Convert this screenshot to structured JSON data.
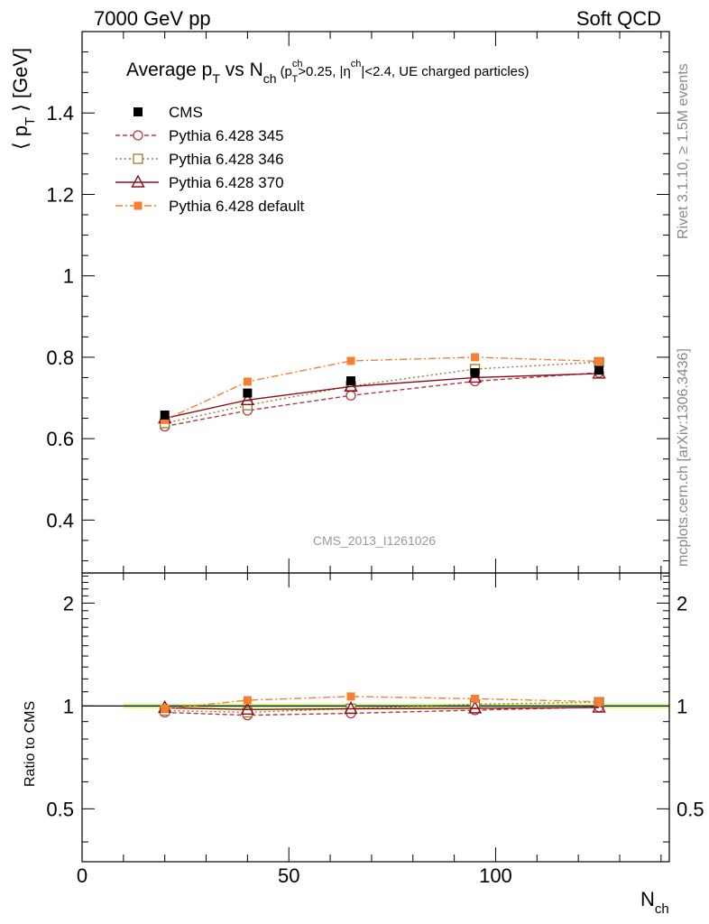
{
  "header": {
    "left": "7000 GeV pp",
    "right": "Soft QCD"
  },
  "side_labels": {
    "rivet": "Rivet 3.1.10, ≥ 1.5M events",
    "mcplots": "mcplots.cern.ch [arXiv:1306.3436]"
  },
  "analysis_id": "CMS_2013_I1261026",
  "title": {
    "prefix": "Average p",
    "sub_t": "T",
    "vs": " vs N",
    "sub_ch": "ch",
    "cut_open": "(p",
    "cut_sup": "ch",
    "cut_sub": "T",
    "cut_mid": ">0.25, |η",
    "cut_sup2": "ch",
    "cut_end": "|<2.4, UE charged particles)"
  },
  "axes": {
    "ylabel_main": "⟨ p",
    "ylabel_main_sub": "T",
    "ylabel_main_end": " ⟩ [GeV]",
    "ylabel_ratio": "Ratio to CMS",
    "xlabel": "N",
    "xlabel_sub": "ch"
  },
  "colors": {
    "cms": "#000000",
    "p345": "#b5383f",
    "p346": "#9b7a2f",
    "p370": "#8b0e1e",
    "pdef": "#f77f2f",
    "band": "#ccff66"
  },
  "chart_data": {
    "type": "line",
    "x": [
      20,
      40,
      65,
      95,
      125
    ],
    "xlim": [
      0,
      142
    ],
    "ylim": [
      0.27,
      1.6
    ],
    "yticks": [
      0.4,
      0.6,
      0.8,
      1.0,
      1.2,
      1.4
    ],
    "ytick_labels": [
      "0.4",
      "0.6",
      "0.8",
      "1",
      "1.2",
      "1.4"
    ],
    "xticks": [
      0,
      50,
      100
    ],
    "xtick_labels": [
      "0",
      "50",
      "100"
    ],
    "ratio_ylim": [
      0.35,
      2.45
    ],
    "ratio_yticks": [
      0.5,
      1,
      2
    ],
    "ratio_ytick_labels": [
      "0.5",
      "1",
      "2"
    ],
    "band_x": [
      10,
      142
    ],
    "series": [
      {
        "name": "CMS",
        "key": "cms",
        "values": [
          0.658,
          0.712,
          0.742,
          0.762,
          0.768
        ]
      },
      {
        "name": "Pythia 6.428 345",
        "key": "p345",
        "values": [
          0.63,
          0.669,
          0.706,
          0.741,
          0.762
        ]
      },
      {
        "name": "Pythia 6.428 346",
        "key": "p346",
        "values": [
          0.638,
          0.682,
          0.729,
          0.771,
          0.788
        ]
      },
      {
        "name": "Pythia 6.428 370",
        "key": "p370",
        "values": [
          0.65,
          0.695,
          0.728,
          0.75,
          0.76
        ]
      },
      {
        "name": "Pythia 6.428 default",
        "key": "pdef",
        "values": [
          0.646,
          0.74,
          0.791,
          0.8,
          0.79
        ]
      }
    ]
  }
}
